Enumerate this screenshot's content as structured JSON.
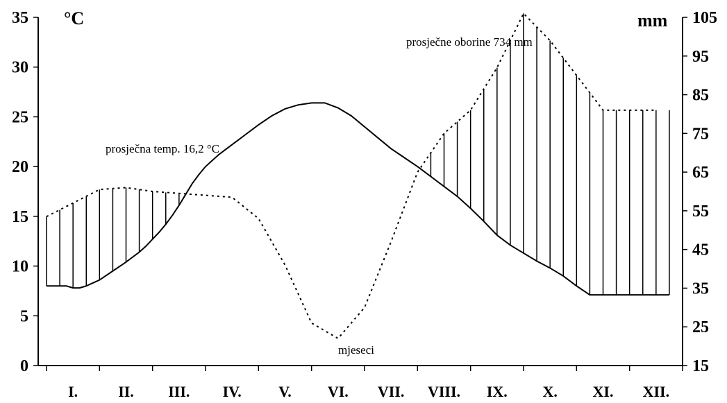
{
  "chart_data": {
    "type": "line",
    "title": "",
    "categories": [
      "I.",
      "II.",
      "III.",
      "IV.",
      "V.",
      "VI.",
      "VII.",
      "VIII.",
      "IX.",
      "X.",
      "XI.",
      "XII."
    ],
    "left_axis": {
      "label": "°C",
      "ylim": [
        0,
        35
      ],
      "ticks": [
        0,
        5,
        10,
        15,
        20,
        25,
        30,
        35
      ]
    },
    "right_axis": {
      "label": "mm",
      "ylim": [
        15,
        105
      ],
      "ticks": [
        15,
        25,
        35,
        45,
        55,
        65,
        75,
        85,
        95,
        105
      ]
    },
    "grid": false,
    "series": [
      {
        "style": "solid",
        "axis": "left",
        "x": [
          0,
          1,
          1.5,
          2,
          2.5,
          3,
          4,
          5,
          6,
          7,
          7.5,
          8,
          8.5,
          9,
          9.5,
          10,
          10.5,
          11,
          11.5,
          12,
          13,
          14,
          14.5,
          15,
          16,
          17,
          18,
          19,
          20,
          21,
          22,
          23,
          24,
          25,
          26,
          27,
          28,
          29,
          30,
          31,
          32,
          33,
          34,
          35,
          36,
          37,
          38,
          39,
          40,
          41,
          42,
          43,
          44,
          45,
          46,
          47
        ],
        "y": [
          8.0,
          8.0,
          8.0,
          7.8,
          7.8,
          8.0,
          8.6,
          9.5,
          10.4,
          11.4,
          12.0,
          12.7,
          13.4,
          14.2,
          15.1,
          16.1,
          17.2,
          18.3,
          19.2,
          20.0,
          21.2,
          22.2,
          22.7,
          23.2,
          24.2,
          25.1,
          25.8,
          26.2,
          26.4,
          26.4,
          25.9,
          25.1,
          24.0,
          22.9,
          21.8,
          20.9,
          20.0,
          19.0,
          18.0,
          17.0,
          15.8,
          14.5,
          13.1,
          12.1,
          11.3,
          10.5,
          9.8,
          9.0,
          8.0,
          7.1,
          7.1,
          7.1,
          7.1,
          7.1,
          7.1,
          7.1
        ]
      },
      {
        "style": "dotted",
        "axis": "right",
        "x": [
          0,
          2,
          4,
          6,
          8,
          10,
          12,
          14,
          16,
          18,
          20,
          22,
          24,
          26,
          28,
          30,
          32,
          34,
          36,
          38,
          40,
          42,
          44,
          46
        ],
        "y": [
          53.5,
          57,
          60.5,
          61,
          60,
          59.5,
          59,
          58.5,
          53,
          41,
          26,
          22,
          30,
          47,
          65,
          75,
          81,
          92,
          106,
          99,
          90,
          81,
          81,
          81
        ]
      }
    ],
    "month_boundaries": [
      0,
      4,
      8,
      12,
      16,
      20,
      24,
      28,
      32,
      36,
      40,
      44,
      48
    ],
    "annotations": {
      "temperature": "prosječna temp. 16,2 °C",
      "precipitation": "prosječne oborine 734 mm",
      "months": "mjeseci"
    }
  }
}
